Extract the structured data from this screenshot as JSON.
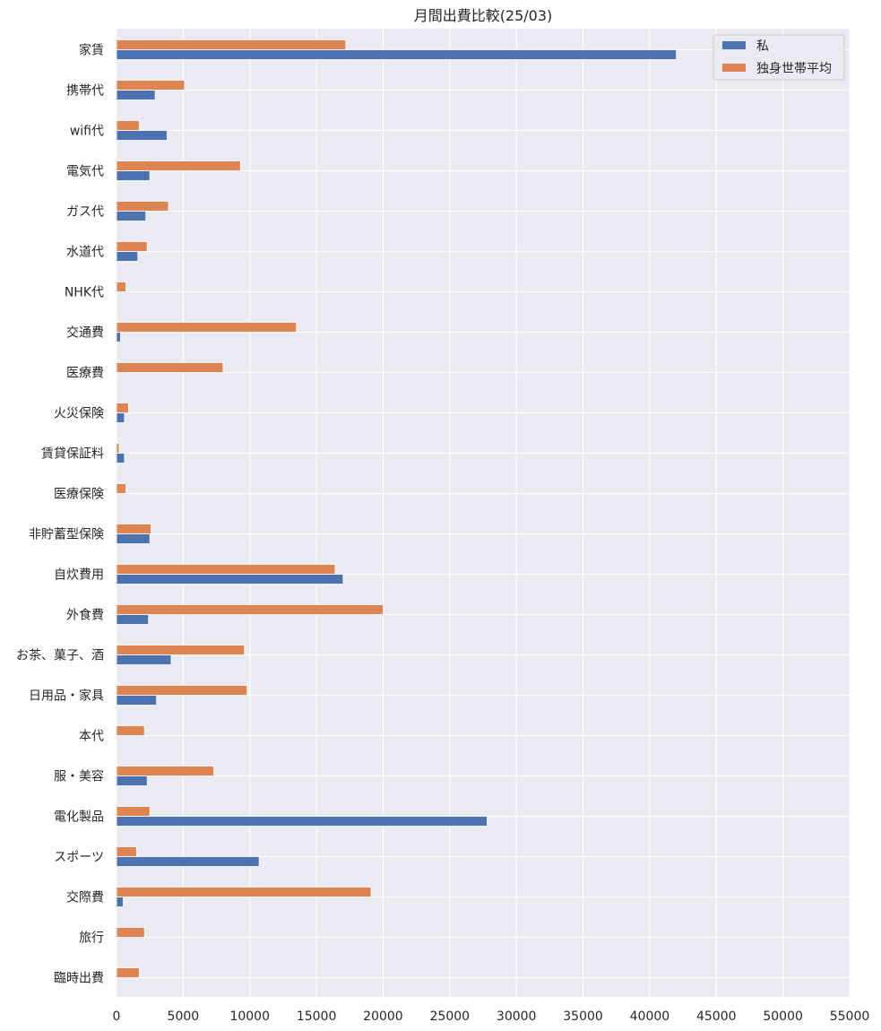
{
  "chart_data": {
    "type": "bar",
    "orientation": "horizontal",
    "title": "月間出費比較(25/03)",
    "xlabel": "",
    "ylabel": "",
    "xlim": [
      0,
      55000
    ],
    "xticks": [
      0,
      5000,
      10000,
      15000,
      20000,
      25000,
      30000,
      35000,
      40000,
      45000,
      50000,
      55000
    ],
    "grid": true,
    "legend_position": "top-right",
    "categories": [
      "家賃",
      "携帯代",
      "wifi代",
      "電気代",
      "ガス代",
      "水道代",
      "NHK代",
      "交通費",
      "医療費",
      "火災保険",
      "賃貸保証料",
      "医療保険",
      "非貯蓄型保険",
      "自炊費用",
      "外食費",
      "お茶、菓子、酒",
      "日用品・家具",
      "本代",
      "服・美容",
      "電化製品",
      "スポーツ",
      "交際費",
      "旅行",
      "臨時出費"
    ],
    "series": [
      {
        "name": "私",
        "color": "#4c72b0",
        "values": [
          42000,
          2900,
          3800,
          2500,
          2200,
          1600,
          0,
          300,
          0,
          600,
          600,
          0,
          2500,
          17000,
          2400,
          4100,
          3000,
          0,
          2300,
          27800,
          10700,
          500,
          0,
          0
        ]
      },
      {
        "name": "独身世帯平均",
        "color": "#dd8452",
        "values": [
          17200,
          5100,
          1700,
          9300,
          3900,
          2300,
          700,
          13500,
          8000,
          900,
          200,
          700,
          2600,
          16400,
          20000,
          9600,
          9800,
          2100,
          7300,
          2500,
          1500,
          19100,
          2100,
          1700
        ]
      }
    ]
  }
}
